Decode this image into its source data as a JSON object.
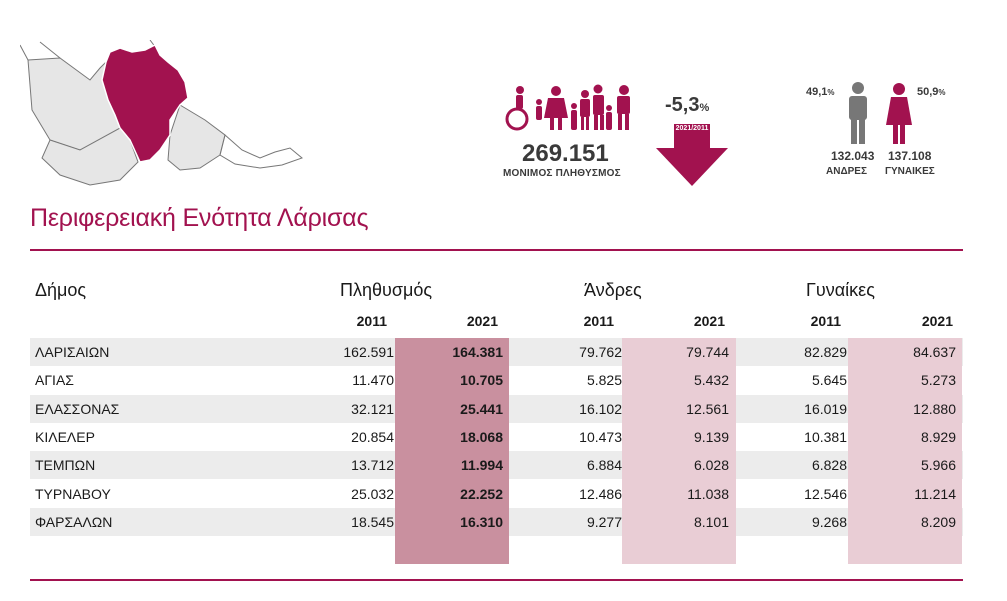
{
  "colors": {
    "accent": "#a2124f",
    "pop2021_col": "#c9909f",
    "men2021_col": "#e9cdd5",
    "women2021_col": "#e9cdd5",
    "row_shade": "#ececec"
  },
  "summary": {
    "population": "269.151",
    "population_label": "ΜΟΝΙΜΟΣ ΠΛΗΘΥΣΜΟΣ",
    "change_value": "-5,3",
    "change_unit": "%",
    "change_period": "2021/2011",
    "men_pct": "49,1",
    "women_pct": "50,9",
    "pct_unit": "%",
    "men_count": "132.043",
    "women_count": "137.108",
    "men_label": "ΑΝΔΡΕΣ",
    "women_label": "ΓΥΝΑΙΚΕΣ"
  },
  "region_title": "Περιφερειακή Ενότητα Λάρισας",
  "table": {
    "col_municipality": "Δήμος",
    "col_population": "Πληθυσμός",
    "col_men": "Άνδρες",
    "col_women": "Γυναίκες",
    "year_a": "2011",
    "year_b": "2021",
    "rows": [
      {
        "name": "ΛΑΡΙΣΑΙΩΝ",
        "p11": "162.591",
        "p21": "164.381",
        "m11": "79.762",
        "m21": "79.744",
        "w11": "82.829",
        "w21": "84.637"
      },
      {
        "name": "ΑΓΙΑΣ",
        "p11": "11.470",
        "p21": "10.705",
        "m11": "5.825",
        "m21": "5.432",
        "w11": "5.645",
        "w21": "5.273"
      },
      {
        "name": "ΕΛΑΣΣΟΝΑΣ",
        "p11": "32.121",
        "p21": "25.441",
        "m11": "16.102",
        "m21": "12.561",
        "w11": "16.019",
        "w21": "12.880"
      },
      {
        "name": "ΚΙΛΕΛΕΡ",
        "p11": "20.854",
        "p21": "18.068",
        "m11": "10.473",
        "m21": "9.139",
        "w11": "10.381",
        "w21": "8.929"
      },
      {
        "name": "ΤΕΜΠΩΝ",
        "p11": "13.712",
        "p21": "11.994",
        "m11": "6.884",
        "m21": "6.028",
        "w11": "6.828",
        "w21": "5.966"
      },
      {
        "name": "ΤΥΡΝΑΒΟΥ",
        "p11": "25.032",
        "p21": "22.252",
        "m11": "12.486",
        "m21": "11.038",
        "w11": "12.546",
        "w21": "11.214"
      },
      {
        "name": "ΦΑΡΣΑΛΩΝ",
        "p11": "18.545",
        "p21": "16.310",
        "m11": "9.277",
        "m21": "8.101",
        "w11": "9.268",
        "w21": "8.209"
      }
    ]
  }
}
